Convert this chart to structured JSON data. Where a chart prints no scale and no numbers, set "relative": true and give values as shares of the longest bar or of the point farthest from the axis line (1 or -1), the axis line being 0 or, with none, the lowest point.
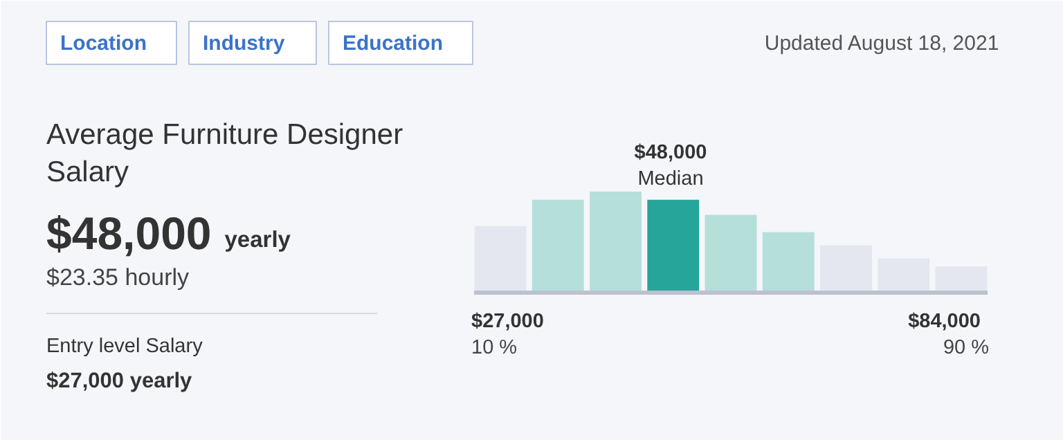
{
  "chart_data": {
    "type": "bar",
    "relative": true,
    "title": "Average Furniture Designer Salary",
    "categories": [
      null,
      null,
      null,
      null,
      null,
      null,
      null,
      null,
      null
    ],
    "values": [
      0.66,
      0.92,
      1,
      0.92,
      0.77,
      0.6,
      0.47,
      0.34,
      0.26
    ],
    "colors": [
      "#e4e7ef",
      "#b5dfdb",
      "#b5dfdb",
      "#26a69a",
      "#b5dfdb",
      "#b5dfdb",
      "#e4e7ef",
      "#e4e7ef",
      "#e4e7ef"
    ],
    "annotations": [
      "Location",
      "Industry",
      "Education",
      "Updated August 18, 2021",
      "$48,000 yearly",
      "$23.35 hourly",
      "Entry level Salary",
      "$27,000 yearly",
      "$48,000",
      "Median",
      "$27,000",
      "10 %",
      "$84,000",
      "90 %"
    ],
    "grid": false
  }
}
